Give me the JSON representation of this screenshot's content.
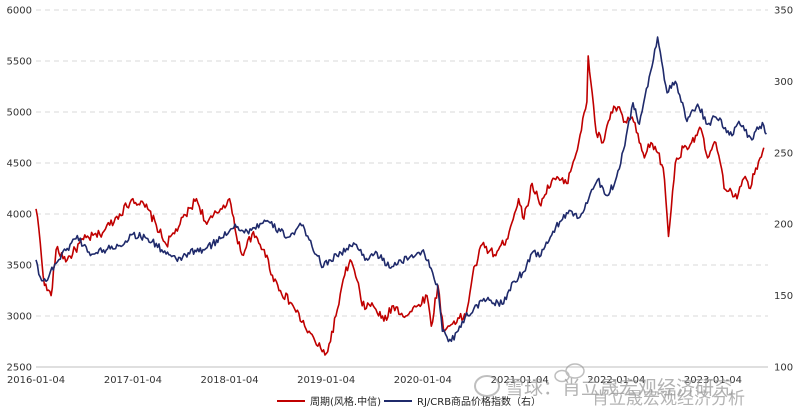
{
  "chart_data": {
    "type": "line",
    "title": "",
    "xlabel": "",
    "ylabel_left": "",
    "ylabel_right": "",
    "x_ticks": [
      "2016-01-04",
      "2017-01-04",
      "2018-01-04",
      "2019-01-04",
      "2020-01-04",
      "2021-01-04",
      "2022-01-04",
      "2023-01-04"
    ],
    "y_left": {
      "lim": [
        2500,
        6000
      ],
      "ticks": [
        "2500",
        "3000",
        "3500",
        "4000",
        "4500",
        "5000",
        "5500",
        "6000"
      ]
    },
    "y_right": {
      "lim": [
        100,
        350
      ],
      "ticks": [
        "100",
        "150",
        "200",
        "250",
        "300",
        "350"
      ]
    },
    "grid": "horizontal dashed",
    "legend_placement": "bottom-center",
    "series": [
      {
        "name": "周期(风格.中信)",
        "axis": "left",
        "color": "#c00000",
        "points": [
          [
            "2016-01-04",
            4050
          ],
          [
            "2016-01-15",
            3850
          ],
          [
            "2016-02-05",
            3300
          ],
          [
            "2016-03-01",
            3200
          ],
          [
            "2016-03-20",
            3650
          ],
          [
            "2016-05-01",
            3550
          ],
          [
            "2016-07-01",
            3750
          ],
          [
            "2016-09-01",
            3800
          ],
          [
            "2016-11-15",
            4000
          ],
          [
            "2017-01-04",
            4150
          ],
          [
            "2017-03-01",
            4050
          ],
          [
            "2017-05-10",
            3700
          ],
          [
            "2017-07-01",
            3900
          ],
          [
            "2017-09-01",
            4150
          ],
          [
            "2017-10-10",
            3900
          ],
          [
            "2017-12-01",
            4050
          ],
          [
            "2018-01-04",
            4150
          ],
          [
            "2018-01-25",
            3850
          ],
          [
            "2018-02-20",
            3600
          ],
          [
            "2018-03-30",
            3800
          ],
          [
            "2018-05-15",
            3650
          ],
          [
            "2018-06-15",
            3400
          ],
          [
            "2018-07-15",
            3250
          ],
          [
            "2018-09-01",
            3100
          ],
          [
            "2018-10-15",
            2900
          ],
          [
            "2018-12-20",
            2650
          ],
          [
            "2019-01-10",
            2650
          ],
          [
            "2019-02-10",
            3000
          ],
          [
            "2019-03-15",
            3400
          ],
          [
            "2019-04-05",
            3550
          ],
          [
            "2019-05-01",
            3350
          ],
          [
            "2019-05-20",
            3100
          ],
          [
            "2019-07-01",
            3100
          ],
          [
            "2019-08-10",
            2950
          ],
          [
            "2019-09-15",
            3100
          ],
          [
            "2019-11-01",
            3000
          ],
          [
            "2019-12-15",
            3100
          ],
          [
            "2020-01-20",
            3200
          ],
          [
            "2020-02-05",
            2900
          ],
          [
            "2020-03-01",
            3300
          ],
          [
            "2020-03-23",
            2850
          ],
          [
            "2020-05-01",
            2950
          ],
          [
            "2020-06-15",
            3000
          ],
          [
            "2020-07-10",
            3400
          ],
          [
            "2020-08-15",
            3700
          ],
          [
            "2020-10-01",
            3600
          ],
          [
            "2020-11-15",
            3750
          ],
          [
            "2020-12-31",
            4150
          ],
          [
            "2021-01-20",
            3950
          ],
          [
            "2021-02-20",
            4300
          ],
          [
            "2021-03-20",
            4100
          ],
          [
            "2021-05-10",
            4350
          ],
          [
            "2021-06-30",
            4300
          ],
          [
            "2021-08-15",
            4700
          ],
          [
            "2021-09-15",
            5100
          ],
          [
            "2021-09-20",
            5550
          ],
          [
            "2021-10-20",
            4800
          ],
          [
            "2021-11-15",
            4700
          ],
          [
            "2021-12-15",
            5000
          ],
          [
            "2022-01-10",
            5050
          ],
          [
            "2022-02-01",
            4900
          ],
          [
            "2022-03-05",
            4950
          ],
          [
            "2022-04-01",
            4700
          ],
          [
            "2022-04-20",
            4550
          ],
          [
            "2022-05-15",
            4700
          ],
          [
            "2022-06-10",
            4600
          ],
          [
            "2022-06-30",
            4450
          ],
          [
            "2022-07-10",
            4150
          ],
          [
            "2022-07-20",
            3780
          ],
          [
            "2022-08-15",
            4500
          ],
          [
            "2022-09-15",
            4650
          ],
          [
            "2022-10-15",
            4700
          ],
          [
            "2022-11-15",
            4850
          ],
          [
            "2022-12-15",
            4550
          ],
          [
            "2023-01-15",
            4700
          ],
          [
            "2023-02-01",
            4500
          ],
          [
            "2023-02-15",
            4250
          ],
          [
            "2023-03-10",
            4250
          ],
          [
            "2023-04-05",
            4150
          ],
          [
            "2023-05-01",
            4350
          ],
          [
            "2023-05-25",
            4250
          ],
          [
            "2023-06-15",
            4450
          ],
          [
            "2023-07-01",
            4550
          ],
          [
            "2023-07-15",
            4650
          ]
        ]
      },
      {
        "name": "RJ/CRB商品价格指数（右）",
        "axis": "right",
        "color": "#1f2a6b",
        "points": [
          [
            "2016-01-04",
            175
          ],
          [
            "2016-01-20",
            163
          ],
          [
            "2016-02-11",
            160
          ],
          [
            "2016-03-15",
            172
          ],
          [
            "2016-05-01",
            183
          ],
          [
            "2016-06-08",
            192
          ],
          [
            "2016-07-01",
            185
          ],
          [
            "2016-08-02",
            179
          ],
          [
            "2016-09-15",
            182
          ],
          [
            "2016-11-15",
            185
          ],
          [
            "2017-01-04",
            193
          ],
          [
            "2017-03-01",
            190
          ],
          [
            "2017-06-21",
            174
          ],
          [
            "2017-08-01",
            180
          ],
          [
            "2017-10-01",
            182
          ],
          [
            "2017-12-01",
            190
          ],
          [
            "2018-01-25",
            200
          ],
          [
            "2018-03-01",
            194
          ],
          [
            "2018-05-21",
            202
          ],
          [
            "2018-07-15",
            195
          ],
          [
            "2018-08-15",
            191
          ],
          [
            "2018-10-03",
            199
          ],
          [
            "2018-11-01",
            189
          ],
          [
            "2018-12-24",
            170
          ],
          [
            "2019-01-15",
            175
          ],
          [
            "2019-03-01",
            180
          ],
          [
            "2019-04-23",
            186
          ],
          [
            "2019-06-05",
            176
          ],
          [
            "2019-07-15",
            180
          ],
          [
            "2019-08-20",
            171
          ],
          [
            "2019-10-01",
            172
          ],
          [
            "2019-12-15",
            180
          ],
          [
            "2020-01-06",
            182
          ],
          [
            "2020-01-30",
            170
          ],
          [
            "2020-02-28",
            158
          ],
          [
            "2020-03-18",
            125
          ],
          [
            "2020-04-21",
            118
          ],
          [
            "2020-06-01",
            132
          ],
          [
            "2020-07-15",
            141
          ],
          [
            "2020-09-01",
            147
          ],
          [
            "2020-10-30",
            144
          ],
          [
            "2020-12-15",
            160
          ],
          [
            "2021-01-15",
            166
          ],
          [
            "2021-02-25",
            181
          ],
          [
            "2021-03-25",
            178
          ],
          [
            "2021-05-10",
            195
          ],
          [
            "2021-06-30",
            208
          ],
          [
            "2021-08-20",
            205
          ],
          [
            "2021-10-25",
            231
          ],
          [
            "2021-12-01",
            220
          ],
          [
            "2021-12-31",
            230
          ],
          [
            "2022-01-31",
            252
          ],
          [
            "2022-03-08",
            285
          ],
          [
            "2022-04-01",
            270
          ],
          [
            "2022-06-09",
            331
          ],
          [
            "2022-07-15",
            292
          ],
          [
            "2022-08-15",
            300
          ],
          [
            "2022-09-28",
            272
          ],
          [
            "2022-11-07",
            284
          ],
          [
            "2022-12-15",
            270
          ],
          [
            "2023-01-15",
            275
          ],
          [
            "2023-03-17",
            262
          ],
          [
            "2023-04-12",
            272
          ],
          [
            "2023-05-31",
            259
          ],
          [
            "2023-06-20",
            268
          ],
          [
            "2023-07-15",
            269
          ],
          [
            "2023-07-25",
            263
          ]
        ]
      }
    ]
  },
  "watermark": {
    "text1": "雪球：肖立晟宏观经济研究",
    "text2": "肖立晟宏观经济分析",
    "icon": "wechat-bubble-icon"
  }
}
